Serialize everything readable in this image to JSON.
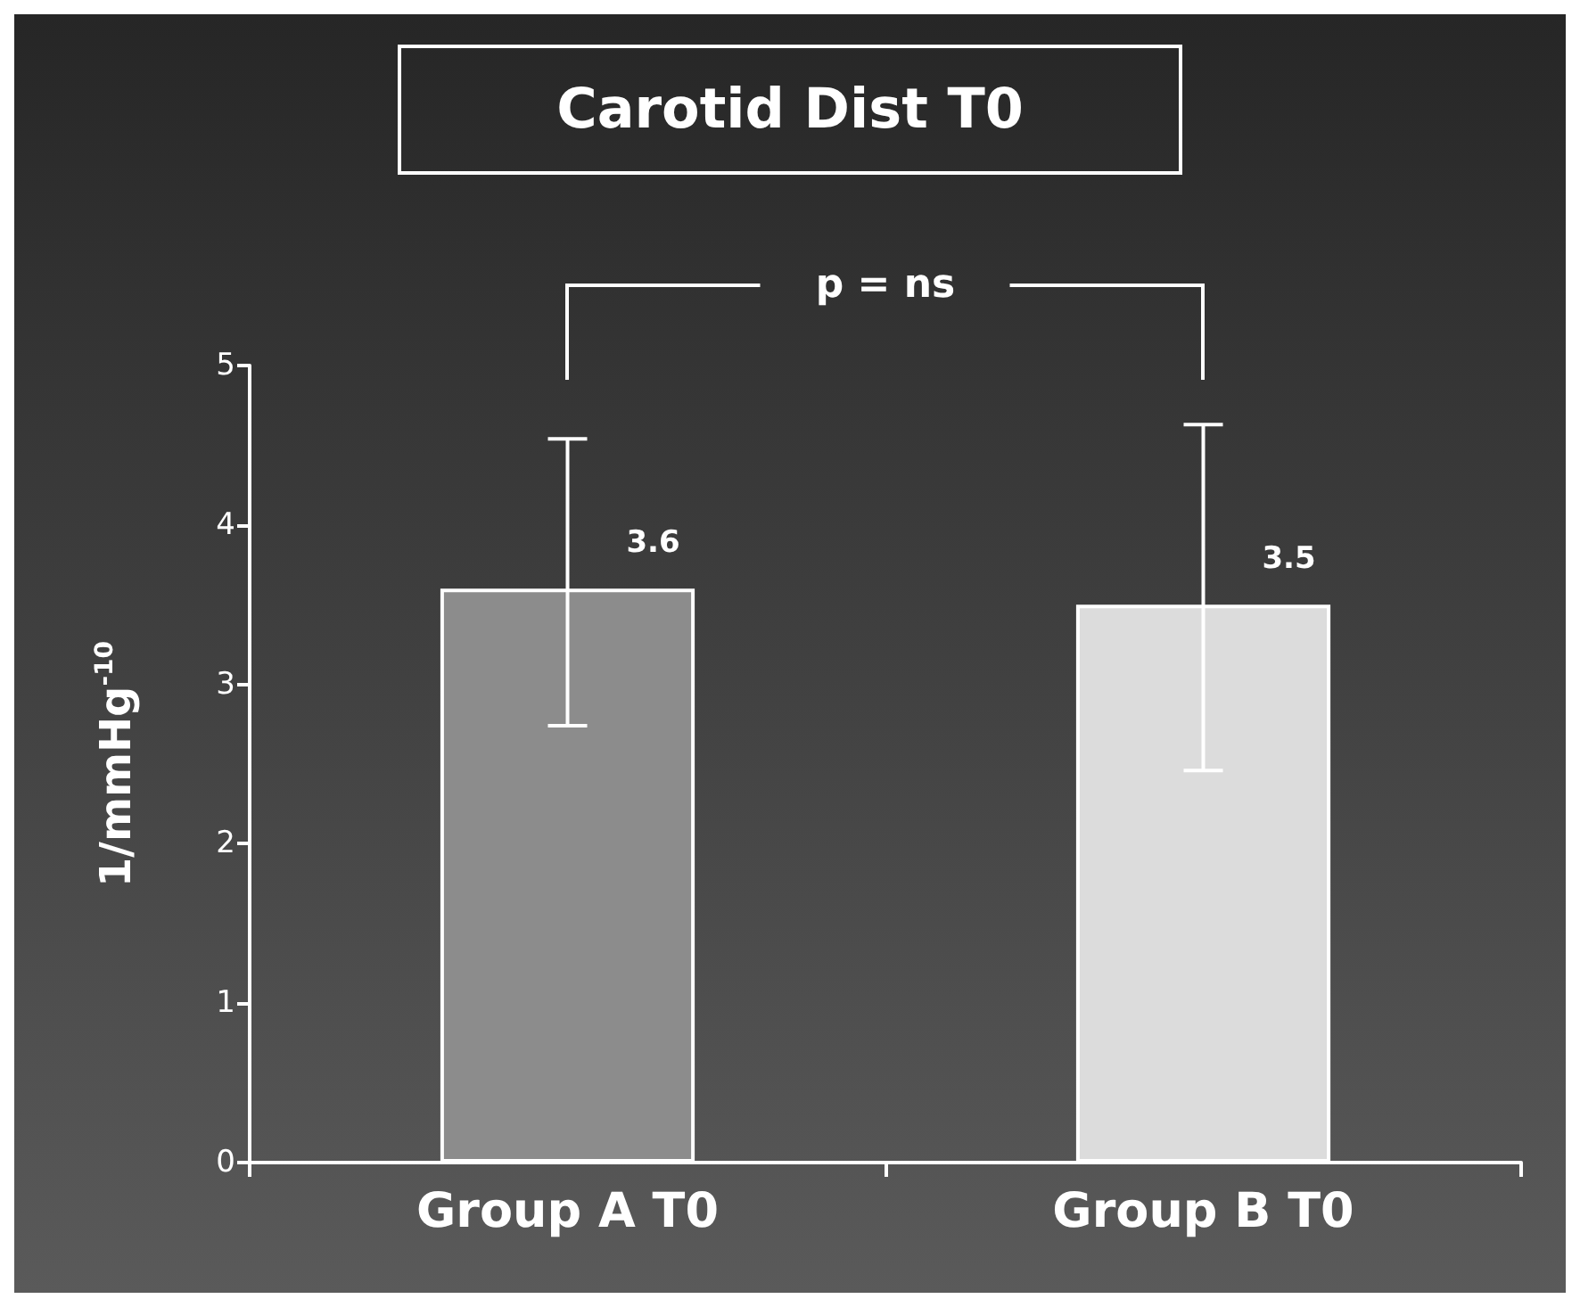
{
  "chart_data": {
    "type": "bar",
    "title": "Carotid Dist T0",
    "ylabel": "1/mmHg$^{-10}$",
    "categories": [
      "Group A T0",
      "Group B T0"
    ],
    "values": [
      3.6,
      3.5
    ],
    "colors": [
      "#8c8c8c",
      "#dcdcdc"
    ],
    "errors": [
      [
        2.74,
        4.54
      ],
      [
        2.46,
        4.63
      ]
    ],
    "data_labels": true,
    "ylim": [
      0,
      5
    ],
    "yticks": [
      0,
      1,
      2,
      3,
      4,
      5
    ],
    "grid": false,
    "annotations": [
      "p = ns"
    ]
  }
}
